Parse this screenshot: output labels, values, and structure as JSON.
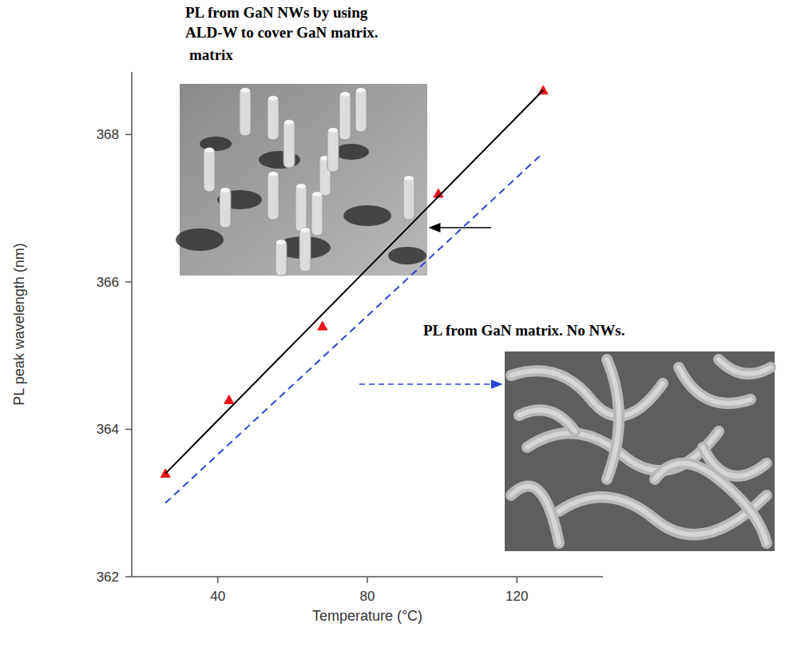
{
  "chart_data": {
    "type": "line",
    "x_label": "Temperature (°C)",
    "y_label": "PL peak wavelength (nm)",
    "xlim": [
      17,
      143
    ],
    "ylim": [
      362,
      368.85
    ],
    "xticks": [
      40,
      80,
      120
    ],
    "yticks": [
      362,
      364,
      366,
      368
    ],
    "grid": false,
    "series": [
      {
        "type": "scatter",
        "color": "#e8141b",
        "marker": "triangle",
        "x": [
          26,
          43,
          68,
          99,
          127
        ],
        "values": [
          363.4,
          364.4,
          365.4,
          367.2,
          368.6
        ]
      },
      {
        "type": "line",
        "color": "#000000",
        "line_style": "solid",
        "x": [
          26,
          127
        ],
        "values": [
          363.4,
          368.6
        ]
      },
      {
        "type": "line",
        "color": "#2a45d6",
        "line_style": "dashed",
        "x": [
          26,
          127
        ],
        "values": [
          363.0,
          367.75
        ]
      }
    ],
    "annotations": [
      {
        "text": [
          "PL from GaN NWs by using",
          "ALD-W to cover GaN matrix."
        ]
      },
      {
        "text": "matrix"
      },
      {
        "text": "PL from GaN matrix. No NWs."
      }
    ]
  }
}
